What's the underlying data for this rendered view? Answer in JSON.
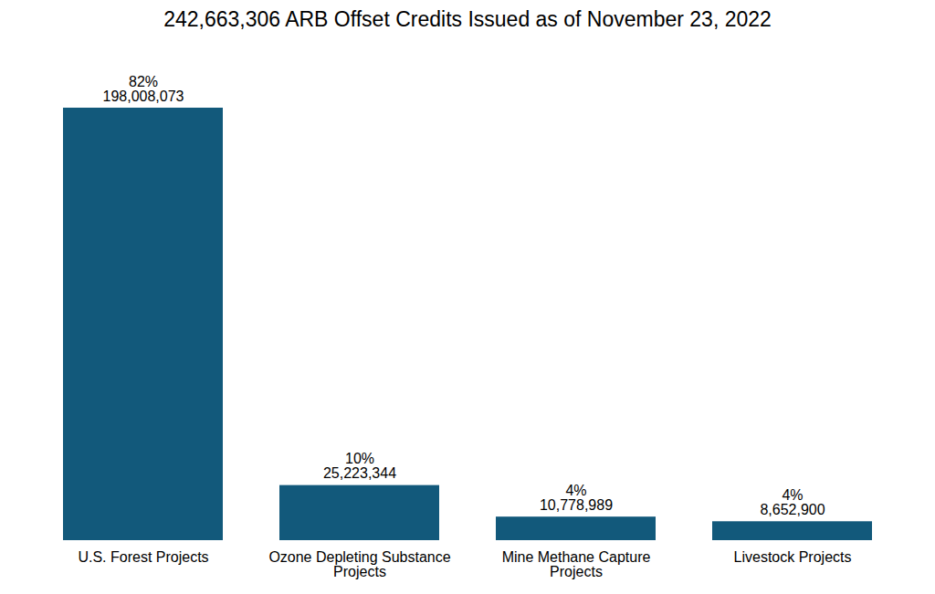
{
  "chart_data": {
    "type": "bar",
    "title": "242,663,306 ARB Offset Credits Issued as of November 23, 2022",
    "categories": [
      "U.S. Forest Projects",
      "Ozone Depleting Substance Projects",
      "Mine Methane Capture Projects",
      "Livestock Projects"
    ],
    "values": [
      198008073,
      25223344,
      10778989,
      8652900
    ],
    "value_labels": [
      "198,008,073",
      "25,223,344",
      "10,778,989",
      "8,652,900"
    ],
    "percent_labels": [
      "82%",
      "10%",
      "4%",
      "4%"
    ],
    "color": "#12597b",
    "data_labels": true,
    "tick_labels": "x",
    "grid": false
  }
}
